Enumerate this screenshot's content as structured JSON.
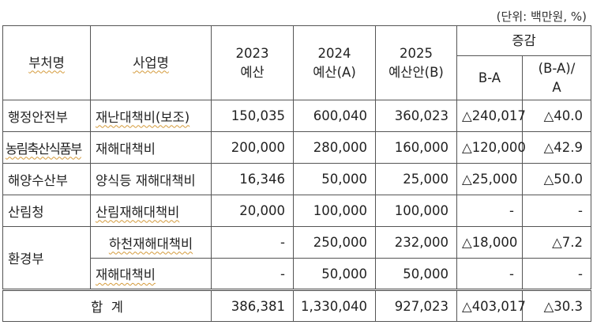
{
  "top_fragment": "",
  "unit_note": "(단위: 백만원, %)",
  "header": {
    "ministry": "부처명",
    "project": "사업명",
    "col_2023": [
      "2023",
      "예산"
    ],
    "col_2024": [
      "2024",
      "예산(A)"
    ],
    "col_2025": [
      "2025",
      "예산안(B)"
    ],
    "change": "증감",
    "change_diff": "B-A",
    "change_rate": [
      "(B-A)/",
      "A"
    ]
  },
  "rows": [
    {
      "ministry": "행정안전부",
      "project": "재난대책비(보조)",
      "y2023": "150,035",
      "y2024": "600,040",
      "y2025": "360,023",
      "diff": "△240,017",
      "rate": "△40.0"
    },
    {
      "ministry": "농림축산식품부",
      "project": "재해대책비",
      "y2023": "200,000",
      "y2024": "280,000",
      "y2025": "160,000",
      "diff": "△120,000",
      "rate": "△42.9"
    },
    {
      "ministry": "해양수산부",
      "project": "양식등 재해대책비",
      "y2023": "16,346",
      "y2024": "50,000",
      "y2025": "25,000",
      "diff": "△25,000",
      "rate": "△50.0"
    },
    {
      "ministry": "산림청",
      "project": "산림재해대책비",
      "y2023": "20,000",
      "y2024": "100,000",
      "y2025": "100,000",
      "diff": "-",
      "rate": "-"
    },
    {
      "ministry": "환경부",
      "project": "하천재해대책비",
      "y2023": "-",
      "y2024": "250,000",
      "y2025": "232,000",
      "diff": "△18,000",
      "rate": "△7.2"
    },
    {
      "ministry": "",
      "project": "재해대책비",
      "y2023": "-",
      "y2024": "50,000",
      "y2025": "50,000",
      "diff": "-",
      "rate": "-"
    }
  ],
  "total": {
    "label": "합  계",
    "y2023": "386,381",
    "y2024": "1,330,040",
    "y2025": "927,023",
    "diff": "△403,017",
    "rate": "△30.3"
  }
}
